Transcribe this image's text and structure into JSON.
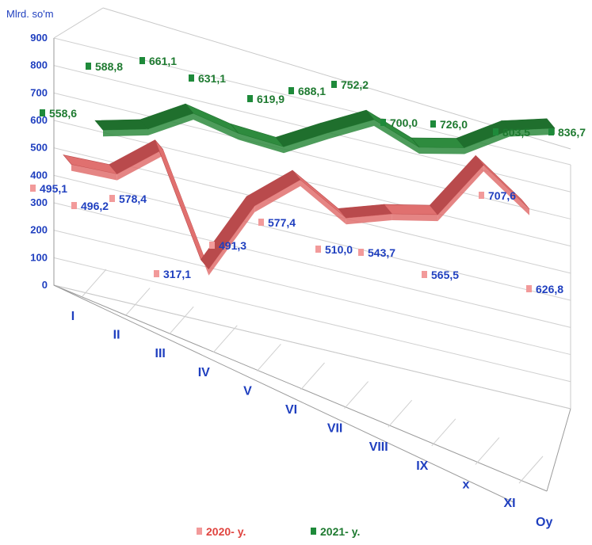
{
  "chart_data": {
    "type": "line",
    "ylabel": "Mlrd. so'm",
    "xlabel": "Oy",
    "ylim": [
      0,
      900
    ],
    "yticks": [
      "0",
      "100",
      "200",
      "300",
      "400",
      "500",
      "600",
      "700",
      "800",
      "900"
    ],
    "categories": [
      "I",
      "II",
      "III",
      "IV",
      "V",
      "VI",
      "VII",
      "VIII",
      "IX",
      "x",
      "XI"
    ],
    "legend_position": "bottom",
    "grid": true,
    "series": [
      {
        "name": "2020- y.",
        "color": "#e0706f",
        "label_color": "#1f3fbf",
        "values": [
          495.1,
          496.2,
          578.4,
          317.1,
          491.3,
          577.4,
          510.0,
          543.7,
          565.5,
          707.6,
          626.8
        ],
        "labels": [
          "495,1",
          "496,2",
          "578,4",
          "317,1",
          "491,3",
          "577,4",
          "510,0",
          "543,7",
          "565,5",
          "707,6",
          "626,8"
        ]
      },
      {
        "name": "2021- y.",
        "color": "#2e8b3e",
        "label_color": "#1e7a30",
        "values": [
          558.6,
          588.8,
          661.1,
          631.1,
          619.9,
          688.1,
          752.2,
          700.0,
          726.0,
          803.5,
          836.7
        ],
        "labels": [
          "558,6",
          "588,8",
          "661,1",
          "631,1",
          "619,9",
          "688,1",
          "752,2",
          "700,0",
          "726,0",
          "803,5",
          "836,7"
        ]
      }
    ]
  }
}
